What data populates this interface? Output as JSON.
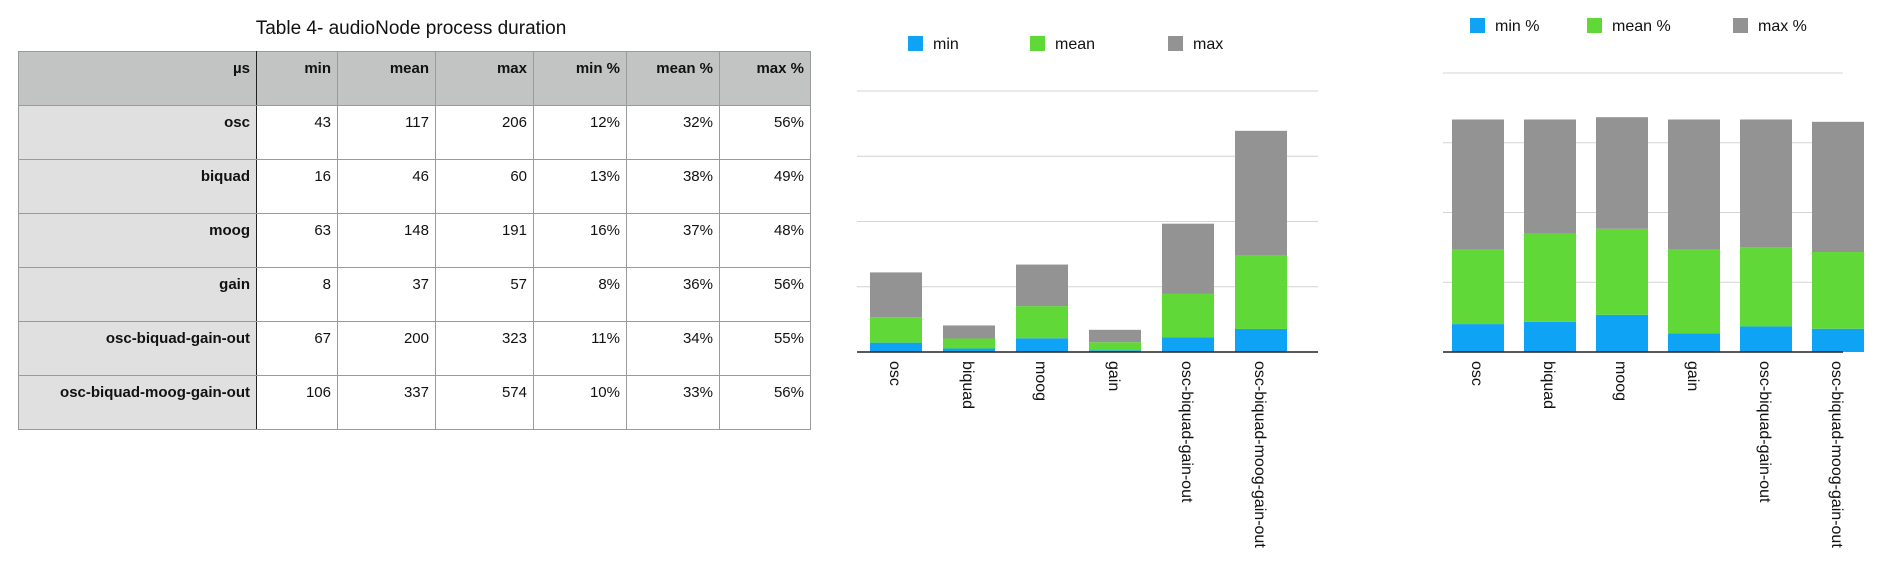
{
  "table": {
    "title": "Table 4- audioNode process duration",
    "headers": [
      "µs",
      "min",
      "mean",
      "max",
      "min %",
      "mean %",
      "max %"
    ],
    "rows": [
      [
        "osc",
        "43",
        "117",
        "206",
        "12%",
        "32%",
        "56%"
      ],
      [
        "biquad",
        "16",
        "46",
        "60",
        "13%",
        "38%",
        "49%"
      ],
      [
        "moog",
        "63",
        "148",
        "191",
        "16%",
        "37%",
        "48%"
      ],
      [
        "gain",
        "8",
        "37",
        "57",
        "8%",
        "36%",
        "56%"
      ],
      [
        "osc-biquad-gain-out",
        "67",
        "200",
        "323",
        "11%",
        "34%",
        "55%"
      ],
      [
        "osc-biquad-moog-gain-out",
        "106",
        "337",
        "574",
        "10%",
        "33%",
        "56%"
      ]
    ]
  },
  "colors": {
    "min": "#0fa3f5",
    "mean": "#5fd838",
    "max": "#939393",
    "grid": "#d4d4d4",
    "axis": "#222222"
  },
  "chart_data": [
    {
      "type": "bar",
      "stacked": true,
      "categories": [
        "osc",
        "biquad",
        "moog",
        "gain",
        "osc-biquad-gain-out",
        "osc-biquad-moog-gain-out"
      ],
      "series": [
        {
          "name": "min",
          "values": [
            43,
            16,
            63,
            8,
            67,
            106
          ]
        },
        {
          "name": "mean",
          "values": [
            117,
            46,
            148,
            37,
            200,
            337
          ]
        },
        {
          "name": "max",
          "values": [
            206,
            60,
            191,
            57,
            323,
            574
          ]
        }
      ],
      "ylim": [
        0,
        1200
      ],
      "gridlines": [
        0,
        300,
        600,
        900,
        1200
      ],
      "legend": "top",
      "y_tick_labels": false
    },
    {
      "type": "bar",
      "stacked": true,
      "categories": [
        "osc",
        "biquad",
        "moog",
        "gain",
        "osc-biquad-gain-out",
        "osc-biquad-moog-gain-out"
      ],
      "series": [
        {
          "name": "min %",
          "values": [
            12,
            13,
            16,
            8,
            11,
            10
          ]
        },
        {
          "name": "mean %",
          "values": [
            32,
            38,
            37,
            36,
            34,
            33
          ]
        },
        {
          "name": "max %",
          "values": [
            56,
            49,
            48,
            56,
            55,
            56
          ]
        }
      ],
      "ylim": [
        0,
        120
      ],
      "gridlines": [
        0,
        30,
        60,
        90,
        120
      ],
      "legend": "top",
      "y_tick_labels": false
    }
  ]
}
